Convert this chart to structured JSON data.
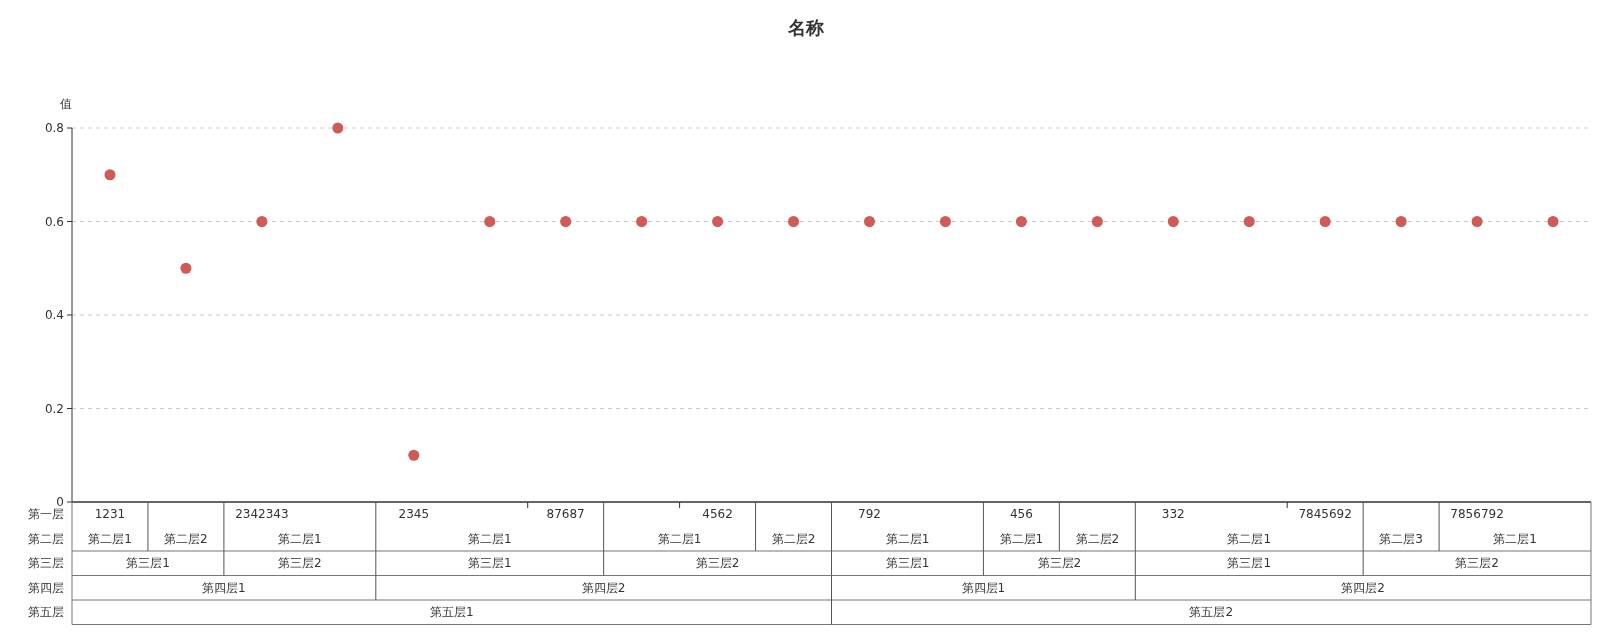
{
  "chart_data": {
    "type": "scatter",
    "title": "名称",
    "ylabel": "值",
    "categories": [
      "1231",
      null,
      "2342343",
      null,
      "2345",
      null,
      "87687",
      null,
      "4562",
      null,
      "792",
      null,
      "456",
      null,
      "332",
      null,
      "7845692",
      null,
      "7856792",
      null
    ],
    "series": [
      {
        "color": "#d05a55",
        "values": [
          0.7,
          0.5,
          0.6,
          0.8,
          0.1,
          0.6,
          0.6,
          0.6,
          0.6,
          0.6,
          0.6,
          0.6,
          0.6,
          0.6,
          0.6,
          0.6,
          0.6,
          0.6,
          0.6,
          0.6
        ]
      }
    ],
    "ylim": [
      0,
      0.8
    ],
    "yticks": [
      0,
      0.2,
      0.4,
      0.6,
      0.8
    ],
    "grid": "y",
    "marker": "circle",
    "annotations": [
      "第一层",
      "第二层",
      "第三层",
      "第四层",
      "第五层",
      "第二层1",
      "第二层2",
      "第二层1",
      "第二层1",
      "第二层1",
      "第二层2",
      "第二层1",
      "第二层1",
      "第二层2",
      "第二层1",
      "第二层3",
      "第二层1",
      "第三层1",
      "第三层2",
      "第三层1",
      "第三层2",
      "第三层1",
      "第三层2",
      "第三层1",
      "第三层2",
      "第四层1",
      "第四层2",
      "第四层1",
      "第四层2",
      "第五层1",
      "第五层2"
    ]
  }
}
